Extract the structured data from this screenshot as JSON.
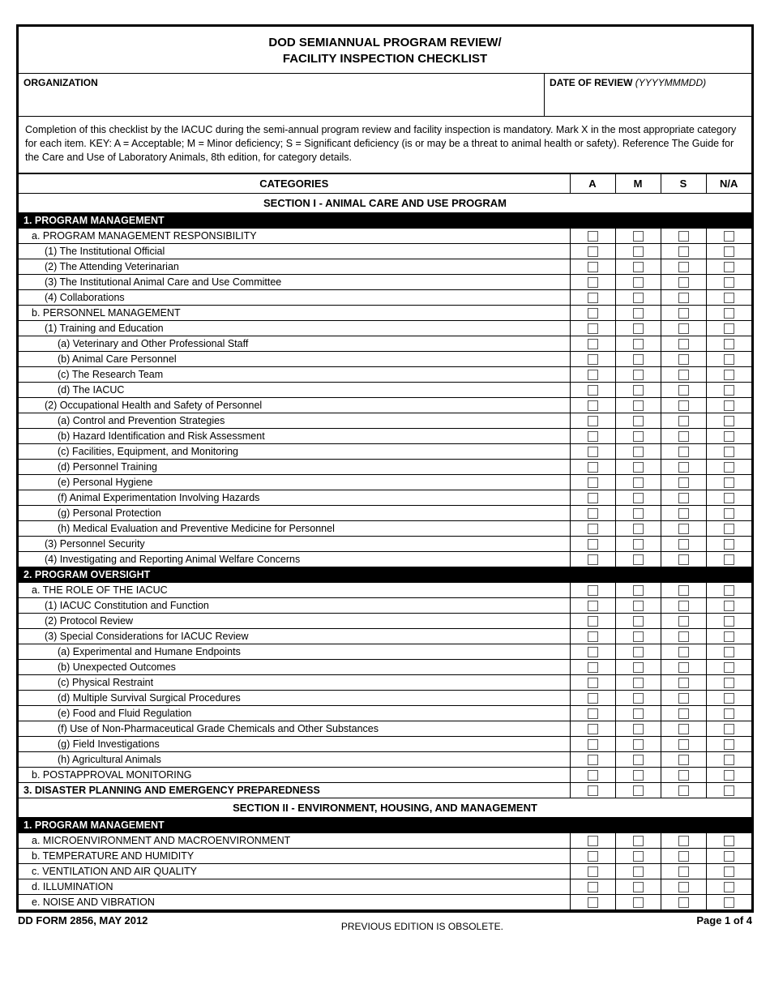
{
  "title_line1": "DOD SEMIANNUAL PROGRAM REVIEW/",
  "title_line2": "FACILITY INSPECTION CHECKLIST",
  "header": {
    "organization_label": "ORGANIZATION",
    "date_label": "DATE OF REVIEW",
    "date_format": "(YYYYMMMDD)"
  },
  "instructions": "   Completion of this checklist by the IACUC during the semi-annual program review and facility inspection is mandatory. Mark X in the most appropriate category for each item.  KEY:  A = Acceptable; M = Minor deficiency; S = Significant deficiency (is or may be a threat to animal health or safety).  Reference The Guide for the Care and Use of Laboratory Animals, 8th edition, for category details.",
  "columns": {
    "categories": "CATEGORIES",
    "a": "A",
    "m": "M",
    "s": "S",
    "na": "N/A"
  },
  "section1_title": "SECTION I - ANIMAL CARE AND USE PROGRAM",
  "section2_title": "SECTION II - ENVIRONMENT, HOUSING, AND MANAGEMENT",
  "rows": {
    "s1_1": "1. PROGRAM MANAGEMENT",
    "s1_1a": "a. PROGRAM MANAGEMENT RESPONSIBILITY",
    "s1_1a1": "(1) The Institutional Official",
    "s1_1a2": "(2) The Attending Veterinarian",
    "s1_1a3": "(3) The Institutional Animal Care and Use Committee",
    "s1_1a4": "(4) Collaborations",
    "s1_1b": "b. PERSONNEL MANAGEMENT",
    "s1_1b1": "(1) Training and Education",
    "s1_1b1a": "(a) Veterinary and Other Professional Staff",
    "s1_1b1b": "(b) Animal Care Personnel",
    "s1_1b1c": "(c) The Research Team",
    "s1_1b1d": "(d) The IACUC",
    "s1_1b2": "(2) Occupational Health and Safety of Personnel",
    "s1_1b2a": "(a) Control and Prevention Strategies",
    "s1_1b2b": "(b) Hazard Identification and Risk Assessment",
    "s1_1b2c": "(c) Facilities, Equipment, and Monitoring",
    "s1_1b2d": "(d) Personnel Training",
    "s1_1b2e": "(e) Personal Hygiene",
    "s1_1b2f": "(f) Animal Experimentation Involving Hazards",
    "s1_1b2g": "(g) Personal Protection",
    "s1_1b2h": "(h) Medical Evaluation and Preventive Medicine for Personnel",
    "s1_1b3": "(3) Personnel Security",
    "s1_1b4": "(4) Investigating and Reporting Animal Welfare Concerns",
    "s1_2": "2. PROGRAM OVERSIGHT",
    "s1_2a": "a. THE ROLE OF THE IACUC",
    "s1_2a1": "(1) IACUC Constitution and Function",
    "s1_2a2": "(2) Protocol Review",
    "s1_2a3": "(3) Special Considerations for IACUC Review",
    "s1_2a3a": "(a) Experimental and Humane Endpoints",
    "s1_2a3b": "(b) Unexpected Outcomes",
    "s1_2a3c": "(c) Physical Restraint",
    "s1_2a3d": "(d) Multiple Survival Surgical Procedures",
    "s1_2a3e": "(e) Food and Fluid Regulation",
    "s1_2a3f": "(f) Use of Non-Pharmaceutical Grade Chemicals and Other Substances",
    "s1_2a3g": "(g) Field Investigations",
    "s1_2a3h": "(h) Agricultural Animals",
    "s1_2b": "b. POSTAPPROVAL MONITORING",
    "s1_3": "3. DISASTER PLANNING AND EMERGENCY PREPAREDNESS",
    "s2_1": "1. PROGRAM MANAGEMENT",
    "s2_1a": "a. MICROENVIRONMENT AND MACROENVIRONMENT",
    "s2_1b": "b. TEMPERATURE AND HUMIDITY",
    "s2_1c": "c. VENTILATION AND AIR QUALITY",
    "s2_1d": "d. ILLUMINATION",
    "s2_1e": "e. NOISE AND VIBRATION"
  },
  "footer": {
    "left": "DD FORM 2856, MAY 2012",
    "center": "PREVIOUS EDITION IS OBSOLETE.",
    "right": "Page 1 of 4"
  }
}
